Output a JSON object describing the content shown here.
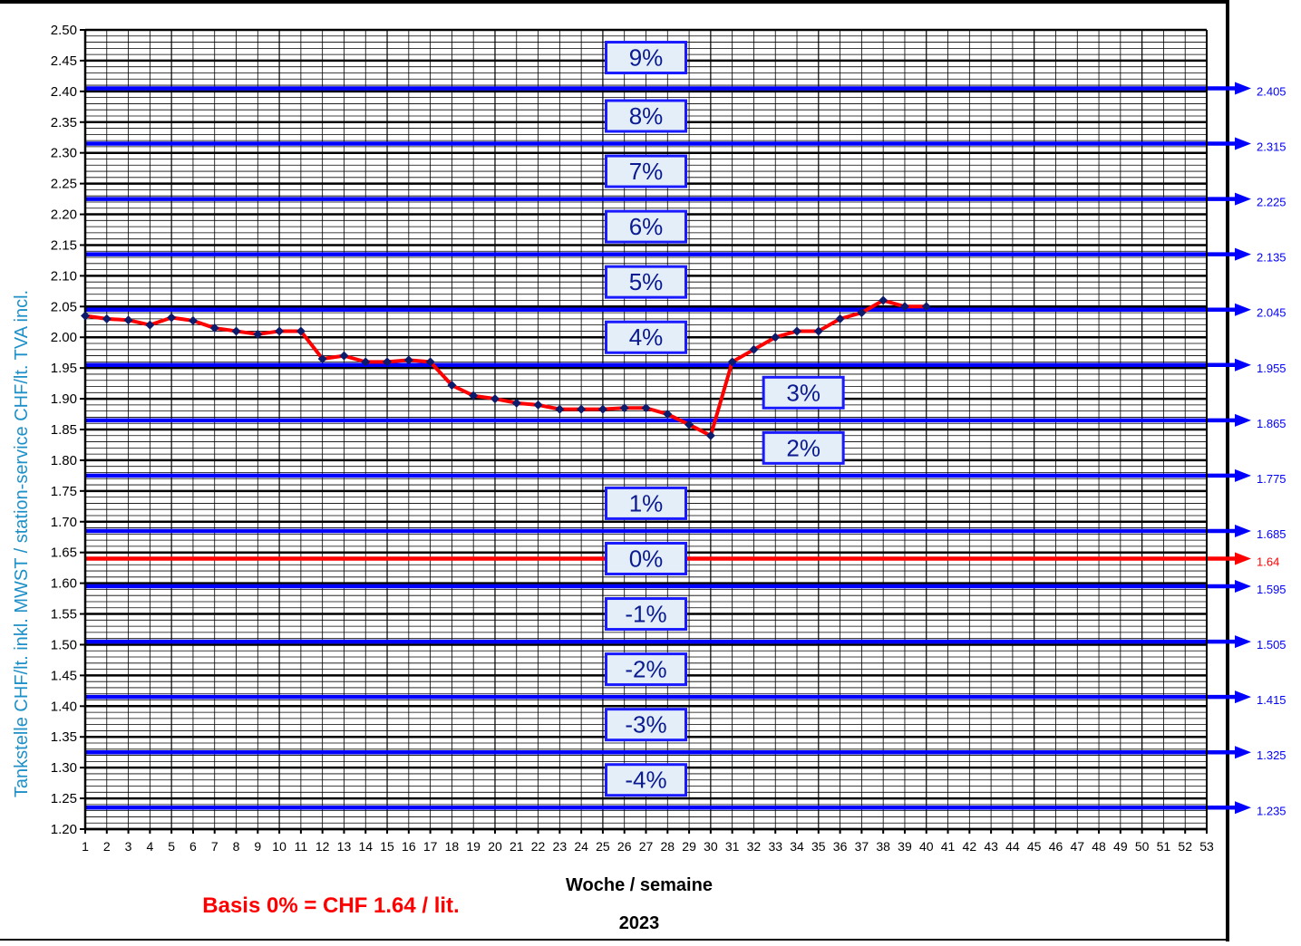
{
  "chart_data": {
    "type": "line",
    "title": "",
    "xlabel": "Woche / semaine",
    "year_label": "2023",
    "ylabel": "Tankstelle CHF/lt. inkl. MWST  /  station-service CHF/lt. TVA incl.",
    "basis_note": "Basis 0% = CHF 1.64 / lit.",
    "ylim": [
      1.2,
      2.5
    ],
    "xlim": [
      1,
      53
    ],
    "y_ticks": [
      "1.20",
      "1.25",
      "1.30",
      "1.35",
      "1.40",
      "1.45",
      "1.50",
      "1.55",
      "1.60",
      "1.65",
      "1.70",
      "1.75",
      "1.80",
      "1.85",
      "1.90",
      "1.95",
      "2.00",
      "2.05",
      "2.10",
      "2.15",
      "2.20",
      "2.25",
      "2.30",
      "2.35",
      "2.40",
      "2.45",
      "2.50"
    ],
    "x_ticks": [
      "1",
      "2",
      "3",
      "4",
      "5",
      "6",
      "7",
      "8",
      "9",
      "10",
      "11",
      "12",
      "13",
      "14",
      "15",
      "16",
      "17",
      "18",
      "19",
      "20",
      "21",
      "22",
      "23",
      "24",
      "25",
      "26",
      "27",
      "28",
      "29",
      "30",
      "31",
      "32",
      "33",
      "34",
      "35",
      "36",
      "37",
      "38",
      "39",
      "40",
      "41",
      "42",
      "43",
      "44",
      "45",
      "46",
      "47",
      "48",
      "49",
      "50",
      "51",
      "52",
      "53"
    ],
    "grid": true,
    "series": [
      {
        "x": [
          1,
          2,
          3,
          4,
          5,
          6,
          7,
          8,
          9,
          10,
          11,
          12,
          13,
          14,
          15,
          16,
          17,
          18,
          19,
          20,
          21,
          22,
          23,
          24,
          25,
          26,
          27,
          28,
          29,
          30,
          31,
          32,
          33,
          34,
          35,
          36,
          37,
          38,
          39,
          40
        ],
        "y": [
          2.035,
          2.03,
          2.028,
          2.02,
          2.032,
          2.027,
          2.015,
          2.01,
          2.005,
          2.01,
          2.01,
          1.965,
          1.97,
          1.96,
          1.96,
          1.963,
          1.96,
          1.922,
          1.905,
          1.9,
          1.893,
          1.89,
          1.883,
          1.883,
          1.883,
          1.885,
          1.885,
          1.875,
          1.858,
          1.84,
          1.96,
          1.98,
          2.0,
          2.01,
          2.01,
          2.03,
          2.04,
          2.06,
          2.05,
          2.05
        ],
        "color": "#ff0000",
        "marker_color": "#0d1b6b"
      }
    ],
    "reference_lines": [
      {
        "value": 2.405,
        "label": "2.405",
        "color": "#0000ff"
      },
      {
        "value": 2.315,
        "label": "2.315",
        "color": "#0000ff"
      },
      {
        "value": 2.225,
        "label": "2.225",
        "color": "#0000ff"
      },
      {
        "value": 2.135,
        "label": "2.135",
        "color": "#0000ff"
      },
      {
        "value": 2.045,
        "label": "2.045",
        "color": "#0000ff"
      },
      {
        "value": 1.955,
        "label": "1.955",
        "color": "#0000ff"
      },
      {
        "value": 1.865,
        "label": "1.865",
        "color": "#0000ff"
      },
      {
        "value": 1.775,
        "label": "1.775",
        "color": "#0000ff"
      },
      {
        "value": 1.685,
        "label": "1.685",
        "color": "#0000ff"
      },
      {
        "value": 1.64,
        "label": "1.64",
        "color": "#ff0000"
      },
      {
        "value": 1.595,
        "label": "1.595",
        "color": "#0000ff"
      },
      {
        "value": 1.505,
        "label": "1.505",
        "color": "#0000ff"
      },
      {
        "value": 1.415,
        "label": "1.415",
        "color": "#0000ff"
      },
      {
        "value": 1.325,
        "label": "1.325",
        "color": "#0000ff"
      },
      {
        "value": 1.235,
        "label": "1.235",
        "color": "#0000ff"
      }
    ],
    "percent_bands": [
      {
        "label": "9%",
        "y": 2.455,
        "x": 27
      },
      {
        "label": "8%",
        "y": 2.36,
        "x": 27
      },
      {
        "label": "7%",
        "y": 2.27,
        "x": 27
      },
      {
        "label": "6%",
        "y": 2.18,
        "x": 27
      },
      {
        "label": "5%",
        "y": 2.09,
        "x": 27
      },
      {
        "label": "4%",
        "y": 2.0,
        "x": 27
      },
      {
        "label": "3%",
        "y": 1.91,
        "x": 34.3
      },
      {
        "label": "2%",
        "y": 1.82,
        "x": 34.3
      },
      {
        "label": "1%",
        "y": 1.73,
        "x": 27
      },
      {
        "label": "0%",
        "y": 1.64,
        "x": 27
      },
      {
        "label": "-1%",
        "y": 1.55,
        "x": 27
      },
      {
        "label": "-2%",
        "y": 1.46,
        "x": 27
      },
      {
        "label": "-3%",
        "y": 1.37,
        "x": 27
      },
      {
        "label": "-4%",
        "y": 1.28,
        "x": 27
      }
    ],
    "colors": {
      "axis": "#000000",
      "reference": "#0000ff",
      "basis": "#ff0000",
      "label_box_fill": "#e4eef9",
      "label_box_stroke": "#1a1aff",
      "ylabel": "#1e90c8"
    }
  }
}
